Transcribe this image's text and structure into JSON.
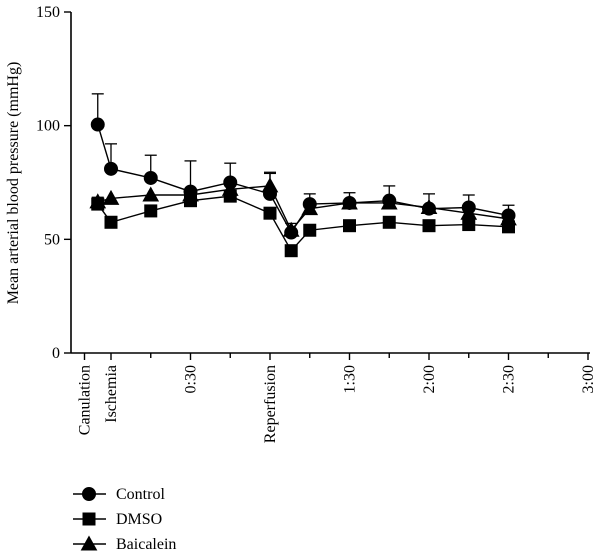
{
  "chart_data": {
    "type": "line",
    "title": "",
    "xlabel": "",
    "ylabel": "Mean arterial blood pressure (mmHg)",
    "ylim": [
      0,
      150
    ],
    "yticks": [
      0,
      50,
      100,
      150
    ],
    "xlim_minutes": [
      -15,
      210
    ],
    "xticks": [
      {
        "label": "Canulation",
        "x": -10
      },
      {
        "label": "Ischemia",
        "x": 0
      },
      {
        "label": "0:30",
        "x": 30
      },
      {
        "label": "Reperfusion",
        "x": 60
      },
      {
        "label": "1:30",
        "x": 90
      },
      {
        "label": "2:00",
        "x": 120
      },
      {
        "label": "2:30",
        "x": 150
      },
      {
        "label": "3:00",
        "x": 180
      }
    ],
    "minor_xticks": [
      15,
      45,
      75,
      105,
      135,
      165
    ],
    "legend_position": "bottom-left",
    "series": [
      {
        "name": "Control",
        "marker": "circle",
        "x": [
          -5,
          0,
          15,
          30,
          45,
          60,
          68,
          75,
          90,
          105,
          120,
          135,
          150
        ],
        "y": [
          100.5,
          81,
          77,
          71,
          75,
          70,
          53,
          65.5,
          66,
          67,
          63.5,
          64,
          60.5
        ],
        "err": [
          13.5,
          11,
          10,
          13.5,
          8.5,
          9,
          4,
          4.5,
          4.5,
          6.5,
          6.5,
          5.5,
          4.5
        ]
      },
      {
        "name": "DMSO",
        "marker": "square",
        "x": [
          -5,
          0,
          15,
          30,
          45,
          60,
          68,
          75,
          90,
          105,
          120,
          135,
          150
        ],
        "y": [
          65.5,
          57.5,
          62.5,
          67,
          69,
          61.5,
          45,
          54,
          56,
          57.5,
          56,
          56.5,
          55.5
        ],
        "err": [
          3,
          2.5,
          0,
          0,
          0,
          0,
          0,
          0,
          0,
          0,
          0,
          0,
          0
        ]
      },
      {
        "name": "Baicalein",
        "marker": "triangle",
        "x": [
          -5,
          0,
          15,
          30,
          45,
          60,
          68,
          75,
          90,
          105,
          120,
          135,
          150
        ],
        "y": [
          66.5,
          68,
          69.5,
          69.5,
          72,
          73.5,
          54,
          63.5,
          66,
          66,
          64,
          61.5,
          59
        ],
        "err": [
          0,
          0,
          0,
          0,
          0,
          6,
          0,
          0,
          0,
          0,
          0,
          0,
          0
        ]
      }
    ]
  }
}
